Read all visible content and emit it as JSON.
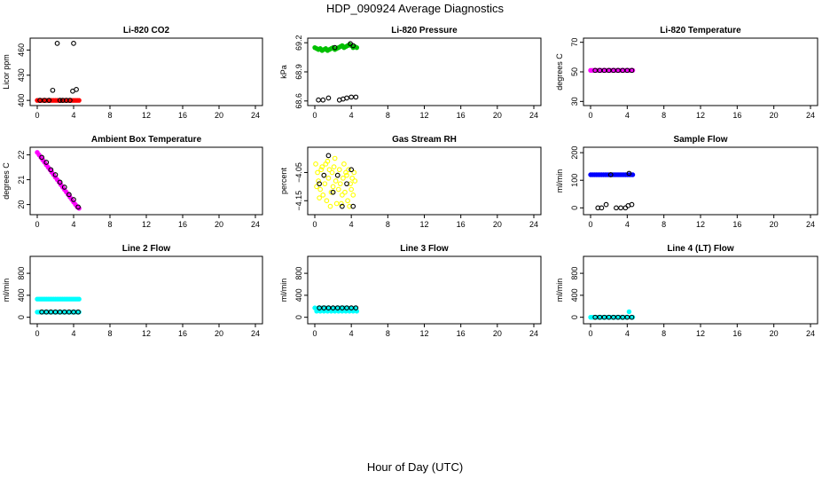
{
  "title": "HDP_090924  Average Diagnostics",
  "xlabel": "Hour of Day (UTC)",
  "chart_data": [
    {
      "type": "scatter",
      "title": "Li-820 CO2",
      "ylabel": "Licor ppm",
      "xlim": [
        0,
        24
      ],
      "ylim": [
        397,
        471
      ],
      "xticks": [
        0,
        4,
        8,
        12,
        16,
        20,
        24
      ],
      "yticks": [
        400,
        430,
        460
      ],
      "series": [
        {
          "name": "samples",
          "color": "#ff0000",
          "filled": true,
          "x": [
            0,
            0.2,
            0.4,
            0.6,
            0.8,
            1,
            1.2,
            1.4,
            1.6,
            1.8,
            2,
            2.2,
            2.4,
            2.6,
            2.8,
            3,
            3.2,
            3.4,
            3.6,
            3.8,
            4,
            4.2,
            4.4,
            4.6
          ],
          "y": [
            400,
            400,
            400,
            400,
            400,
            400,
            400,
            400,
            400,
            400,
            400,
            400,
            400,
            400,
            400,
            400,
            400,
            400,
            400,
            400,
            400,
            400,
            400,
            400
          ]
        },
        {
          "name": "average",
          "color": "#000000",
          "filled": false,
          "x": [
            0.3,
            0.8,
            1.3,
            1.7,
            2.2,
            2.5,
            2.8,
            3.2,
            3.6,
            3.9,
            4.0,
            4.3
          ],
          "y": [
            400,
            400,
            400,
            412,
            468,
            400,
            400,
            400,
            400,
            411,
            468,
            413
          ]
        }
      ]
    },
    {
      "type": "scatter",
      "title": "Li-820 Pressure",
      "ylabel": "kPa",
      "xlim": [
        0,
        24
      ],
      "ylim": [
        68.58,
        69.22
      ],
      "xticks": [
        0,
        4,
        8,
        12,
        16,
        20,
        24
      ],
      "yticks": [
        68.6,
        68.9,
        69.2
      ],
      "series": [
        {
          "name": "samples",
          "color": "#00c000",
          "filled": true,
          "x": [
            0,
            0.2,
            0.4,
            0.6,
            0.8,
            1,
            1.2,
            1.4,
            1.6,
            1.8,
            2,
            2.2,
            2.4,
            2.6,
            2.8,
            3,
            3.2,
            3.4,
            3.6,
            3.8,
            4,
            4.2,
            4.4,
            4.6
          ],
          "y": [
            69.15,
            69.14,
            69.13,
            69.14,
            69.12,
            69.13,
            69.14,
            69.12,
            69.13,
            69.14,
            69.15,
            69.13,
            69.14,
            69.15,
            69.16,
            69.17,
            69.15,
            69.16,
            69.17,
            69.18,
            69.17,
            69.15,
            69.16,
            69.15
          ]
        },
        {
          "name": "average",
          "color": "#000000",
          "filled": false,
          "x": [
            0.4,
            0.9,
            1.5,
            2.2,
            2.7,
            3.1,
            3.5,
            3.9,
            4.0,
            4.2,
            4.5
          ],
          "y": [
            68.61,
            68.61,
            68.63,
            69.15,
            68.61,
            68.62,
            68.63,
            69.19,
            68.64,
            69.17,
            68.64
          ]
        }
      ]
    },
    {
      "type": "scatter",
      "title": "Li-820 Temperature",
      "ylabel": "degrees C",
      "xlim": [
        0,
        24
      ],
      "ylim": [
        29,
        71
      ],
      "xticks": [
        0,
        4,
        8,
        12,
        16,
        20,
        24
      ],
      "yticks": [
        30,
        50,
        70
      ],
      "series": [
        {
          "name": "samples",
          "color": "#ff00ff",
          "filled": true,
          "x": [
            0,
            0.2,
            0.4,
            0.6,
            0.8,
            1,
            1.2,
            1.4,
            1.6,
            1.8,
            2,
            2.2,
            2.4,
            2.6,
            2.8,
            3,
            3.2,
            3.4,
            3.6,
            3.8,
            4,
            4.2,
            4.4,
            4.6
          ],
          "y": [
            51,
            51,
            51,
            51,
            51,
            51,
            51,
            51,
            51,
            51,
            51,
            51,
            51,
            51,
            51,
            51,
            51,
            51,
            51,
            51,
            51,
            51,
            51,
            51
          ]
        },
        {
          "name": "average",
          "color": "#000000",
          "filled": false,
          "x": [
            0.5,
            1.0,
            1.5,
            2.0,
            2.5,
            3.0,
            3.5,
            4.0,
            4.5
          ],
          "y": [
            51,
            51,
            51,
            51,
            51,
            51,
            51,
            51,
            51
          ]
        }
      ]
    },
    {
      "type": "scatter",
      "title": "Ambient Box Temperature",
      "ylabel": "degrees C",
      "xlim": [
        0,
        24
      ],
      "ylim": [
        19.7,
        22.2
      ],
      "xticks": [
        0,
        4,
        8,
        12,
        16,
        20,
        24
      ],
      "yticks": [
        20.0,
        21.0,
        22.0
      ],
      "series": [
        {
          "name": "samples",
          "color": "#ff00ff",
          "filled": true,
          "x": [
            0,
            0.2,
            0.4,
            0.6,
            0.8,
            1,
            1.2,
            1.4,
            1.6,
            1.8,
            2,
            2.2,
            2.4,
            2.6,
            2.8,
            3,
            3.2,
            3.4,
            3.6,
            3.8,
            4,
            4.2,
            4.4,
            4.6
          ],
          "y": [
            22.1,
            22.0,
            21.9,
            21.8,
            21.7,
            21.6,
            21.5,
            21.4,
            21.3,
            21.2,
            21.1,
            21.0,
            20.9,
            20.8,
            20.7,
            20.6,
            20.5,
            20.4,
            20.3,
            20.2,
            20.1,
            20.0,
            19.9,
            19.85
          ]
        },
        {
          "name": "average",
          "color": "#000000",
          "filled": false,
          "x": [
            0.5,
            1.0,
            1.5,
            2.0,
            2.5,
            3.0,
            3.5,
            4.0,
            4.5
          ],
          "y": [
            21.9,
            21.7,
            21.4,
            21.2,
            20.9,
            20.7,
            20.4,
            20.2,
            19.9
          ]
        }
      ]
    },
    {
      "type": "scatter",
      "title": "Gas Stream RH",
      "ylabel": "percent",
      "xlim": [
        0,
        24
      ],
      "ylim": [
        -4.19,
        -3.97
      ],
      "xticks": [
        0,
        4,
        8,
        12,
        16,
        20,
        24
      ],
      "yticks": [
        -4.05,
        -4.15
      ],
      "series": [
        {
          "name": "samples",
          "color": "#ffff00",
          "filled": false,
          "x": [
            0.1,
            0.3,
            0.4,
            0.6,
            0.7,
            0.9,
            1.0,
            1.1,
            1.2,
            1.3,
            1.5,
            1.6,
            1.8,
            1.9,
            2.0,
            2.1,
            2.3,
            2.4,
            2.5,
            2.6,
            2.7,
            2.8,
            3.0,
            3.1,
            3.2,
            3.3,
            3.5,
            3.6,
            3.7,
            3.9,
            4.0,
            4.1,
            4.2,
            4.3,
            0.2,
            0.5,
            0.8,
            1.4,
            1.7,
            2.2,
            2.9,
            3.4,
            3.8,
            4.4
          ],
          "y": [
            -4.02,
            -4.05,
            -4.08,
            -4.11,
            -4.04,
            -4.13,
            -4.06,
            -4.09,
            -4.02,
            -4.15,
            -4.07,
            -4.04,
            -4.12,
            -4.05,
            -4.1,
            -4.03,
            -4.08,
            -4.16,
            -4.06,
            -4.11,
            -4.04,
            -4.09,
            -4.13,
            -4.07,
            -4.02,
            -4.12,
            -4.06,
            -4.15,
            -4.04,
            -4.09,
            -4.11,
            -4.07,
            -4.13,
            -4.05,
            -4.1,
            -4.14,
            -4.03,
            -4.01,
            -4.17,
            -4.0,
            -4.16,
            -4.05,
            -4.17,
            -4.08
          ]
        },
        {
          "name": "average",
          "color": "#000000",
          "filled": false,
          "x": [
            0.5,
            1.0,
            1.5,
            2.0,
            2.5,
            3.0,
            3.5,
            4.0,
            4.2
          ],
          "y": [
            -4.09,
            -4.06,
            -3.99,
            -4.12,
            -4.06,
            -4.17,
            -4.09,
            -4.04,
            -4.17
          ]
        }
      ]
    },
    {
      "type": "scatter",
      "title": "Sample Flow",
      "ylabel": "ml/min",
      "xlim": [
        0,
        24
      ],
      "ylim": [
        -15,
        210
      ],
      "xticks": [
        0,
        4,
        8,
        12,
        16,
        20,
        24
      ],
      "yticks": [
        0,
        100,
        200
      ],
      "series": [
        {
          "name": "samples",
          "color": "#0000ff",
          "filled": true,
          "x": [
            0,
            0.2,
            0.4,
            0.6,
            0.8,
            1,
            1.2,
            1.4,
            1.6,
            1.8,
            2,
            2.2,
            2.4,
            2.6,
            2.8,
            3,
            3.2,
            3.4,
            3.6,
            3.8,
            4,
            4.2,
            4.4,
            4.6
          ],
          "y": [
            120,
            120,
            120,
            120,
            120,
            120,
            120,
            120,
            120,
            120,
            120,
            120,
            120,
            120,
            120,
            120,
            120,
            120,
            120,
            120,
            120,
            120,
            120,
            120
          ]
        },
        {
          "name": "average",
          "color": "#000000",
          "filled": false,
          "x": [
            0.8,
            1.2,
            1.7,
            2.2,
            2.8,
            3.3,
            3.8,
            4.1,
            4.2,
            4.5
          ],
          "y": [
            0,
            0,
            12,
            120,
            0,
            0,
            0,
            8,
            125,
            12
          ]
        }
      ]
    },
    {
      "type": "scatter",
      "title": "Line 2 Flow",
      "ylabel": "ml/min",
      "xlim": [
        0,
        24
      ],
      "ylim": [
        -70,
        1060
      ],
      "xticks": [
        0,
        4,
        8,
        12,
        16,
        20,
        24
      ],
      "yticks": [
        0,
        400,
        800
      ],
      "series": [
        {
          "name": "samples-high",
          "color": "#00ffff",
          "filled": true,
          "x": [
            0,
            0.2,
            0.4,
            0.6,
            0.8,
            1,
            1.2,
            1.4,
            1.6,
            1.8,
            2,
            2.2,
            2.4,
            2.6,
            2.8,
            3,
            3.2,
            3.4,
            3.6,
            3.8,
            4,
            4.2,
            4.4,
            4.6
          ],
          "y": [
            330,
            330,
            330,
            330,
            330,
            330,
            330,
            330,
            330,
            330,
            330,
            330,
            330,
            330,
            330,
            330,
            330,
            330,
            330,
            330,
            330,
            330,
            330,
            330
          ]
        },
        {
          "name": "samples-low",
          "color": "#00ffff",
          "filled": true,
          "x": [
            0,
            0.2,
            0.4,
            0.6,
            0.8,
            1,
            1.2,
            1.4,
            1.6,
            1.8,
            2,
            2.2,
            2.4,
            2.6,
            2.8,
            3,
            3.2,
            3.4,
            3.6,
            3.8,
            4,
            4.2,
            4.4,
            4.6
          ],
          "y": [
            95,
            95,
            95,
            95,
            95,
            95,
            95,
            95,
            95,
            95,
            95,
            95,
            95,
            95,
            95,
            95,
            95,
            95,
            95,
            95,
            95,
            95,
            95,
            95
          ]
        },
        {
          "name": "average",
          "color": "#000000",
          "filled": false,
          "x": [
            0.5,
            1.0,
            1.5,
            2.0,
            2.5,
            3.0,
            3.5,
            4.0,
            4.5
          ],
          "y": [
            95,
            95,
            95,
            95,
            95,
            95,
            95,
            95,
            95
          ]
        }
      ]
    },
    {
      "type": "scatter",
      "title": "Line 3 Flow",
      "ylabel": "ml/min",
      "xlim": [
        0,
        24
      ],
      "ylim": [
        -70,
        1060
      ],
      "xticks": [
        0,
        4,
        8,
        12,
        16,
        20,
        24
      ],
      "yticks": [
        0,
        400,
        800
      ],
      "series": [
        {
          "name": "samples",
          "color": "#00ffff",
          "filled": true,
          "x": [
            0,
            0.2,
            0.4,
            0.6,
            0.8,
            1,
            1.2,
            1.4,
            1.6,
            1.8,
            2,
            2.2,
            2.4,
            2.6,
            2.8,
            3,
            3.2,
            3.4,
            3.6,
            3.8,
            4,
            4.2,
            4.4,
            4.6
          ],
          "y": [
            170,
            110,
            170,
            110,
            170,
            110,
            170,
            110,
            170,
            110,
            170,
            110,
            170,
            110,
            170,
            110,
            170,
            110,
            170,
            110,
            170,
            110,
            170,
            110
          ]
        },
        {
          "name": "average",
          "color": "#000000",
          "filled": false,
          "x": [
            0.5,
            1.0,
            1.5,
            2.0,
            2.5,
            3.0,
            3.5,
            4.0,
            4.5
          ],
          "y": [
            170,
            170,
            170,
            170,
            170,
            170,
            170,
            170,
            170
          ]
        }
      ]
    },
    {
      "type": "scatter",
      "title": "Line 4 (LT) Flow",
      "ylabel": "ml/min",
      "xlim": [
        0,
        24
      ],
      "ylim": [
        -70,
        1060
      ],
      "xticks": [
        0,
        4,
        8,
        12,
        16,
        20,
        24
      ],
      "yticks": [
        0,
        400,
        800
      ],
      "series": [
        {
          "name": "samples",
          "color": "#00ffff",
          "filled": true,
          "x": [
            0,
            0.2,
            0.4,
            0.6,
            0.8,
            1,
            1.2,
            1.4,
            1.6,
            1.8,
            2,
            2.2,
            2.4,
            2.6,
            2.8,
            3,
            3.2,
            3.4,
            3.6,
            3.8,
            4,
            4.2,
            4.4,
            4.6
          ],
          "y": [
            0,
            0,
            0,
            0,
            0,
            0,
            0,
            0,
            0,
            0,
            0,
            0,
            0,
            0,
            0,
            0,
            0,
            0,
            0,
            0,
            0,
            100,
            0,
            0
          ]
        },
        {
          "name": "average",
          "color": "#000000",
          "filled": false,
          "x": [
            0.5,
            1.0,
            1.5,
            2.0,
            2.5,
            3.0,
            3.5,
            4.0,
            4.5
          ],
          "y": [
            0,
            0,
            0,
            0,
            0,
            0,
            0,
            0,
            0
          ]
        }
      ]
    }
  ]
}
